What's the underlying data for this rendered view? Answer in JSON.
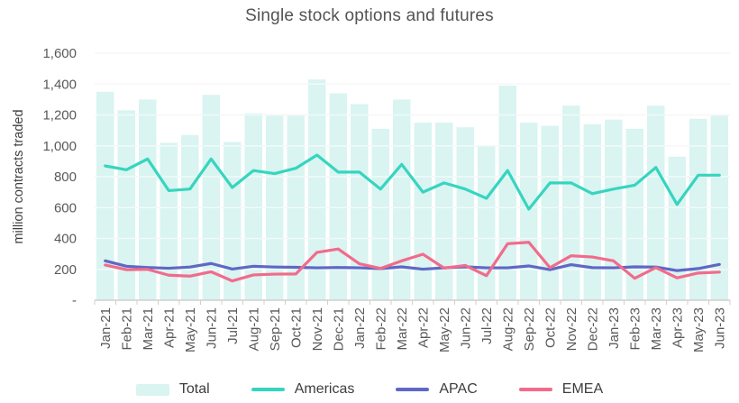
{
  "chart_data": {
    "type": "bar+line",
    "title": "Single stock options and futures",
    "xlabel": "",
    "ylabel": "million contracts traded",
    "ylim": [
      0,
      1600
    ],
    "grid": true,
    "legend_position": "bottom",
    "y_ticks": {
      "values": [
        0,
        200,
        400,
        600,
        800,
        1000,
        1200,
        1400,
        1600
      ],
      "labels": [
        "-",
        "200",
        "400",
        "600",
        "800",
        "1,000",
        "1,200",
        "1,400",
        "1,600"
      ]
    },
    "categories": [
      "Jan-21",
      "Feb-21",
      "Mar-21",
      "Apr-21",
      "May-21",
      "Jun-21",
      "Jul-21",
      "Aug-21",
      "Sep-21",
      "Oct-21",
      "Nov-21",
      "Dec-21",
      "Jan-22",
      "Feb-22",
      "Mar-22",
      "Apr-22",
      "May-22",
      "Jun-22",
      "Jul-22",
      "Aug-22",
      "Sep-22",
      "Oct-22",
      "Nov-22",
      "Dec-22",
      "Jan-23",
      "Feb-23",
      "Mar-23",
      "Apr-23",
      "May-23",
      "Jun-23"
    ],
    "series": [
      {
        "name": "Total",
        "type": "bar",
        "color": "#d9f4f1",
        "values": [
          1350,
          1230,
          1300,
          1020,
          1070,
          1330,
          1025,
          1210,
          1195,
          1195,
          1430,
          1340,
          1270,
          1110,
          1300,
          1150,
          1150,
          1120,
          1000,
          1390,
          1150,
          1130,
          1260,
          1140,
          1170,
          1110,
          1260,
          930,
          1175,
          1195
        ]
      },
      {
        "name": "Americas",
        "type": "line",
        "color": "#36d5bf",
        "values": [
          870,
          845,
          915,
          710,
          720,
          915,
          730,
          840,
          820,
          855,
          940,
          830,
          830,
          720,
          880,
          700,
          760,
          720,
          660,
          840,
          590,
          760,
          760,
          690,
          720,
          745,
          860,
          620,
          810,
          810
        ]
      },
      {
        "name": "APAC",
        "type": "line",
        "color": "#5f68c5",
        "values": [
          255,
          220,
          212,
          207,
          215,
          238,
          202,
          220,
          215,
          213,
          210,
          212,
          210,
          205,
          216,
          201,
          210,
          216,
          210,
          210,
          222,
          198,
          230,
          211,
          210,
          216,
          215,
          192,
          205,
          232
        ]
      },
      {
        "name": "EMEA",
        "type": "line",
        "color": "#f26b8b",
        "values": [
          228,
          198,
          200,
          162,
          156,
          184,
          125,
          164,
          169,
          170,
          310,
          332,
          236,
          206,
          255,
          298,
          208,
          225,
          159,
          366,
          375,
          211,
          288,
          280,
          255,
          142,
          211,
          145,
          176,
          182
        ]
      }
    ]
  },
  "style": {
    "gridline_color": "#ebebeb",
    "axis_line_color": "#cfcfcf",
    "tick_label_color": "#595959",
    "title_color": "#535353"
  }
}
